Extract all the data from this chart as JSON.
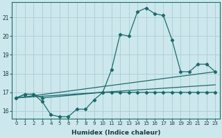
{
  "xlabel": "Humidex (Indice chaleur)",
  "background_color": "#cce8ec",
  "grid_color": "#aacdd4",
  "line_color": "#1a6b6b",
  "xlim": [
    -0.5,
    23.5
  ],
  "ylim": [
    15.6,
    21.8
  ],
  "yticks": [
    16,
    17,
    18,
    19,
    20,
    21
  ],
  "xticks": [
    0,
    1,
    2,
    3,
    4,
    5,
    6,
    7,
    8,
    9,
    10,
    11,
    12,
    13,
    14,
    15,
    16,
    17,
    18,
    19,
    20,
    21,
    22,
    23
  ],
  "line_upper": {
    "x": [
      0,
      1,
      2,
      3,
      10,
      11,
      12,
      13,
      14,
      15,
      16,
      17,
      18,
      19,
      20,
      21,
      22,
      23
    ],
    "y": [
      16.7,
      16.9,
      16.9,
      16.7,
      17.0,
      18.2,
      20.1,
      20.0,
      21.3,
      21.5,
      21.2,
      21.1,
      19.8,
      18.1,
      18.1,
      18.5,
      18.5,
      18.1
    ]
  },
  "line_lower": {
    "x": [
      0,
      1,
      2,
      3,
      4,
      5,
      6,
      7,
      8,
      9,
      10,
      11,
      12,
      13,
      14,
      15,
      16,
      17,
      18,
      19,
      20,
      21,
      22,
      23
    ],
    "y": [
      16.7,
      16.9,
      16.9,
      16.5,
      15.8,
      15.7,
      15.7,
      16.1,
      16.1,
      16.6,
      17.0,
      17.0,
      17.0,
      17.0,
      17.0,
      17.0,
      17.0,
      17.0,
      17.0,
      17.0,
      17.0,
      17.0,
      17.0,
      17.0
    ]
  },
  "line_diag1": {
    "x": [
      0,
      23
    ],
    "y": [
      16.7,
      18.1
    ]
  },
  "line_diag2": {
    "x": [
      0,
      23
    ],
    "y": [
      16.7,
      17.4
    ]
  }
}
